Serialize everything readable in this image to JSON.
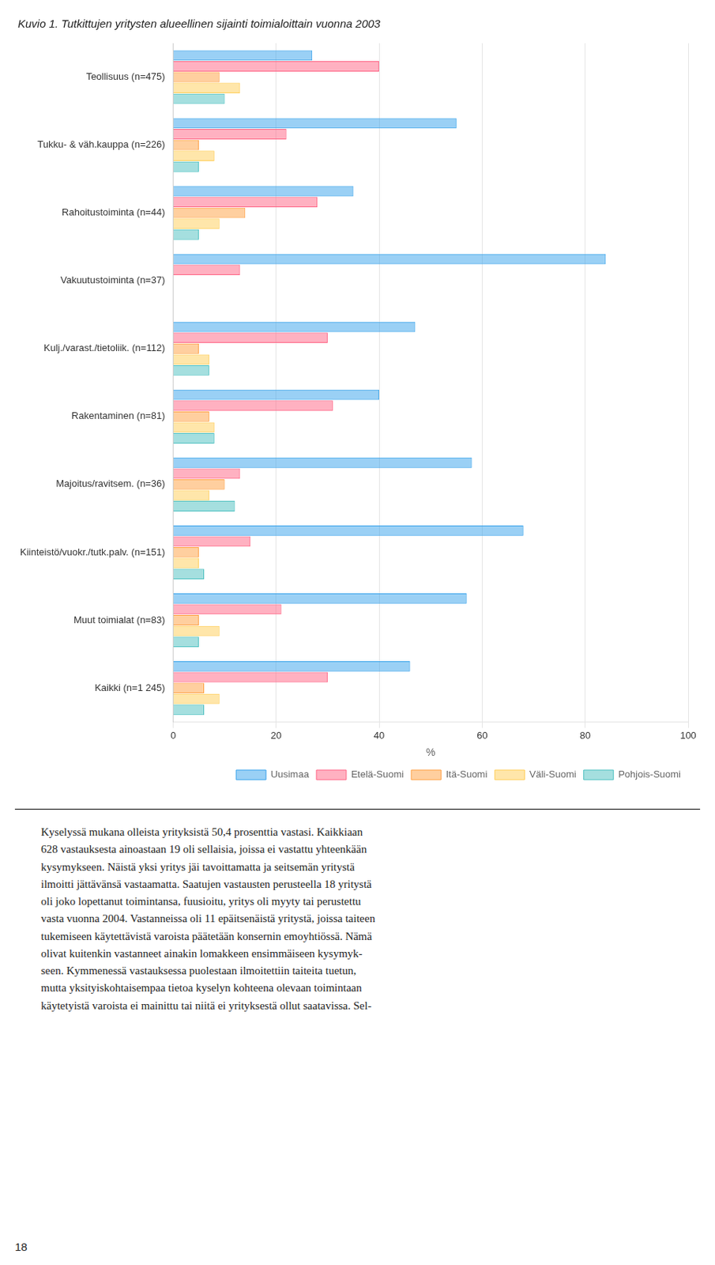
{
  "chart_data": {
    "type": "bar",
    "orientation": "horizontal",
    "title": "Kuvio 1. Tutkittujen yritysten alueellinen sijainti toimialoittain vuonna 2003",
    "categories": [
      "Teollisuus (n=475)",
      "Tukku- & väh.kauppa (n=226)",
      "Rahoitustoiminta (n=44)",
      "Vakuutustoiminta (n=37)",
      "Kulj./varast./tietoliik. (n=112)",
      "Rakentaminen (n=81)",
      "Majoitus/ravitsem. (n=36)",
      "Kiinteistö/vuokr./tutk.palv. (n=151)",
      "Muut toimialat (n=83)",
      "Kaikki (n=1 245)"
    ],
    "series": [
      {
        "name": "Uusimaa",
        "values": [
          27,
          55,
          35,
          84,
          47,
          40,
          58,
          68,
          57,
          46
        ]
      },
      {
        "name": "Etelä-Suomi",
        "values": [
          40,
          22,
          28,
          13,
          30,
          31,
          13,
          15,
          21,
          30
        ]
      },
      {
        "name": "Itä-Suomi",
        "values": [
          9,
          5,
          14,
          0,
          5,
          7,
          10,
          5,
          5,
          6
        ]
      },
      {
        "name": "Väli-Suomi",
        "values": [
          13,
          8,
          9,
          0,
          7,
          8,
          7,
          5,
          9,
          9
        ]
      },
      {
        "name": "Pohjois-Suomi",
        "values": [
          10,
          5,
          5,
          0,
          7,
          8,
          12,
          6,
          5,
          6
        ]
      }
    ],
    "xlabel": "%",
    "xlim": [
      0,
      100
    ],
    "xticks": [
      0,
      20,
      40,
      60,
      80,
      100
    ],
    "grid": "x",
    "legend": "lower right",
    "footnote": [
      "Kyselyssä mukana olleista yrityksistä 50,4 prosenttia vastasi. Kaikkiaan",
      "628 vastauksesta ainoastaan 19 oli sellaisia, joissa ei vastattu yhteenkään",
      "kysymykseen. Näistä yksi yritys jäi tavoittamatta ja seitsemän yritystä",
      "ilmoitti jättävänsä vastaamatta. Saatujen vastausten perusteella 18 yritystä",
      "oli joko lopettanut toimintansa, fuusioitu, yritys oli myyty tai perustettu",
      "vasta vuonna 2004. Vastanneissa oli 11 epäitsenäistä yritystä, joissa taiteen",
      "tukemiseen käytettävistä varoista päätetään konsernin emoyhtiössä. Nämä",
      "olivat kuitenkin vastanneet ainakin lomakkeen ensimmäiseen kysymyk-",
      "seen. Kymmenessä vastauksessa puolestaan ilmoitettiin taiteita tuetun,",
      "mutta yksityiskohtaisempaa tietoa kyselyn kohteena olevaan toimintaan",
      "käytetyistä varoista ei mainittu tai niitä ei yrityksestä ollut saatavissa. Sel-"
    ],
    "page_number": "18"
  }
}
